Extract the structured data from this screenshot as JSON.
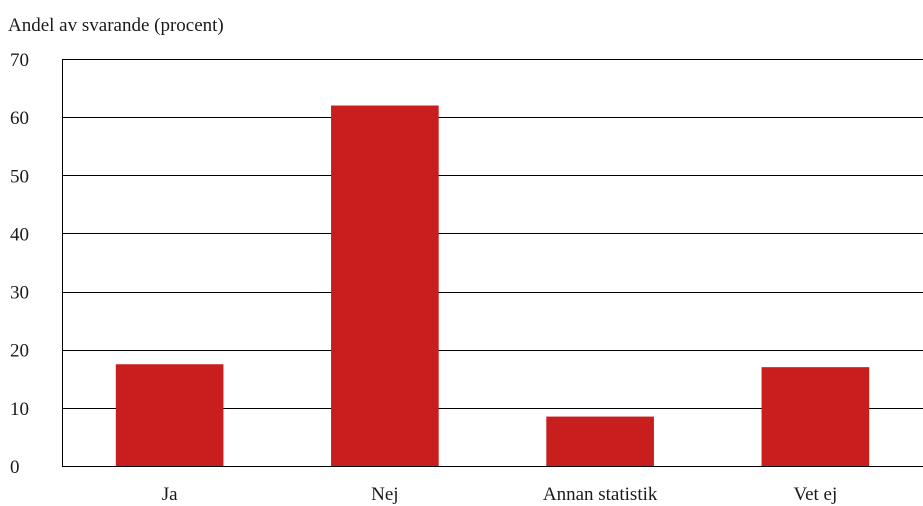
{
  "chart_data": {
    "type": "bar",
    "title": "",
    "xlabel": "",
    "ylabel": "Andel av svarande (procent)",
    "categories": [
      "Ja",
      "Nej",
      "Annan statistik",
      "Vet ej"
    ],
    "values": [
      17.5,
      62,
      8.5,
      17
    ],
    "ylim": [
      0,
      70
    ],
    "yticks": [
      0,
      10,
      20,
      30,
      40,
      50,
      60,
      70
    ],
    "grid": true,
    "bar_color": "#c81e1e"
  }
}
